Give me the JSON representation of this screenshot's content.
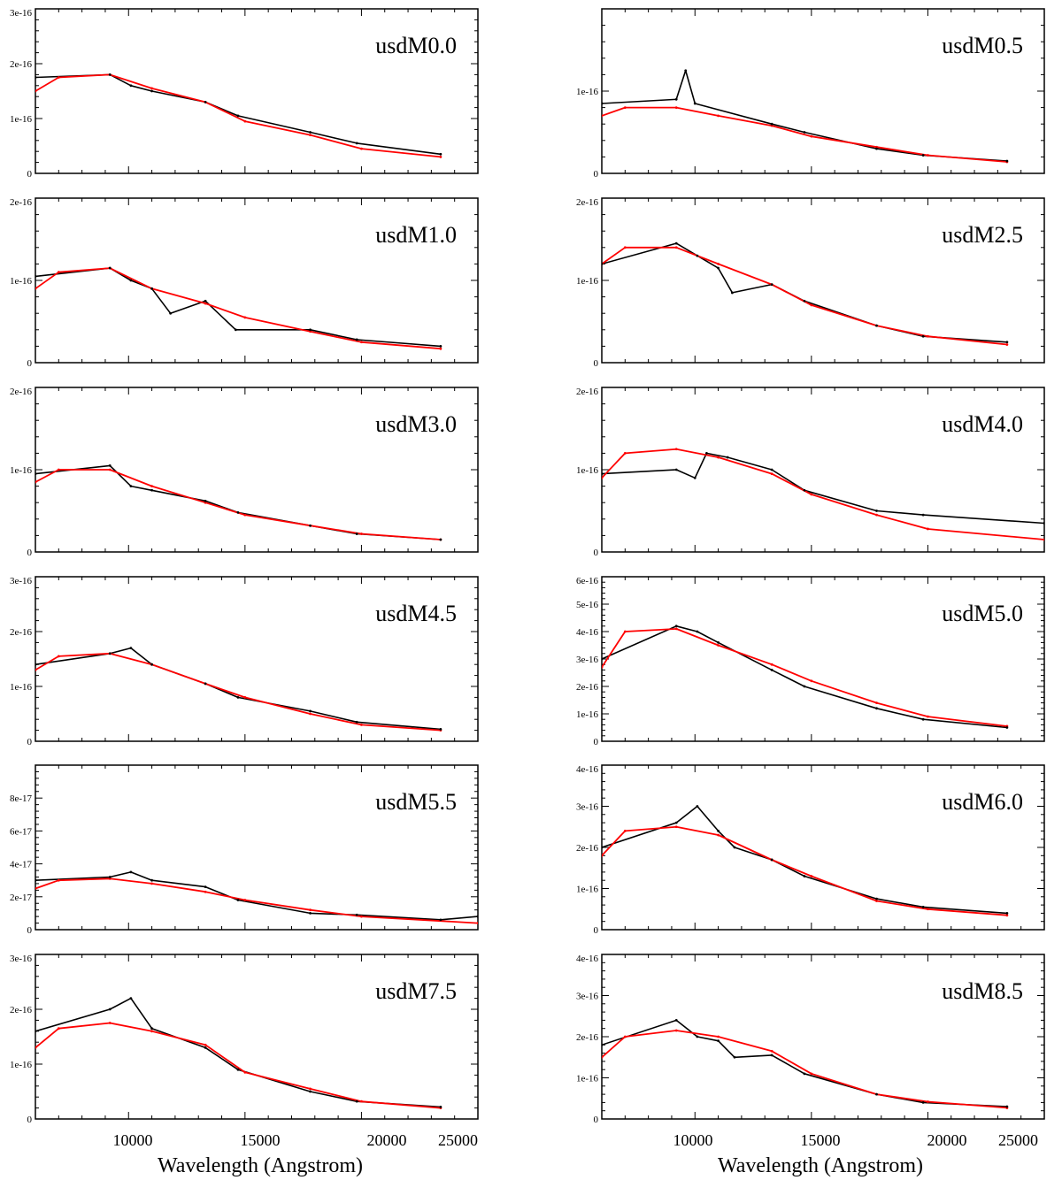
{
  "chart_data": {
    "type": "line",
    "x_ticks": [
      10000,
      15000,
      20000,
      25000
    ],
    "x_tick_labels": [
      "10000",
      "15000",
      "20000",
      "25000"
    ],
    "xlim": [
      6000,
      25000
    ],
    "xlabel": "Wavelength (Angstrom)",
    "ylabel": "",
    "grid": false,
    "series_colors": {
      "observed": "#000000",
      "model": "#ff0000"
    },
    "panels": [
      {
        "label": "usdM0.0",
        "ylim": [
          0,
          3e-16
        ],
        "ytick_values": [
          0,
          1e-16,
          2e-16,
          3e-16
        ],
        "ytick_labels": [
          "0",
          "1e-16",
          "2e-16",
          "3e-16"
        ],
        "observed": {
          "x": [
            6000,
            9200,
            10100,
            11000,
            13300,
            14700,
            17800,
            19800,
            23400
          ],
          "y": [
            1.75e-16,
            1.8e-16,
            1.6e-16,
            1.5e-16,
            1.3e-16,
            1.05e-16,
            7.5e-17,
            5.5e-17,
            3.5e-17
          ]
        },
        "model": {
          "x": [
            6000,
            7000,
            9200,
            11000,
            13300,
            15000,
            17800,
            20000,
            23400
          ],
          "y": [
            1.5e-16,
            1.75e-16,
            1.8e-16,
            1.55e-16,
            1.3e-16,
            9.5e-17,
            7e-17,
            4.5e-17,
            3e-17
          ]
        }
      },
      {
        "label": "usdM0.5",
        "ylim": [
          0,
          2e-16
        ],
        "ytick_values": [
          0,
          1e-16
        ],
        "ytick_labels": [
          "0",
          "1e-16"
        ],
        "observed": {
          "x": [
            6000,
            9200,
            9600,
            10000,
            13300,
            14700,
            17800,
            19800,
            23400
          ],
          "y": [
            8.5e-17,
            9e-17,
            1.25e-16,
            8.5e-17,
            6e-17,
            5e-17,
            3e-17,
            2.2e-17,
            1.5e-17
          ]
        },
        "model": {
          "x": [
            6000,
            7000,
            9200,
            11000,
            13300,
            15000,
            17800,
            20000,
            23400
          ],
          "y": [
            7e-17,
            8e-17,
            8e-17,
            7e-17,
            5.8e-17,
            4.5e-17,
            3.2e-17,
            2.2e-17,
            1.4e-17
          ]
        }
      },
      {
        "label": "usdM1.0",
        "ylim": [
          0,
          2e-16
        ],
        "ytick_values": [
          0,
          1e-16,
          2e-16
        ],
        "ytick_labels": [
          "0",
          "1e-16",
          "2e-16"
        ],
        "observed": {
          "x": [
            6000,
            9200,
            10100,
            11000,
            11800,
            13300,
            14600,
            17800,
            19800,
            23400
          ],
          "y": [
            1.05e-16,
            1.15e-16,
            1e-16,
            9e-17,
            6e-17,
            7.5e-17,
            4e-17,
            4e-17,
            2.8e-17,
            2e-17
          ]
        },
        "model": {
          "x": [
            6000,
            7000,
            9200,
            11000,
            13300,
            15000,
            17800,
            20000,
            23400
          ],
          "y": [
            9e-17,
            1.1e-16,
            1.15e-16,
            9e-17,
            7.2e-17,
            5.5e-17,
            3.8e-17,
            2.5e-17,
            1.7e-17
          ]
        }
      },
      {
        "label": "usdM2.5",
        "ylim": [
          0,
          2e-16
        ],
        "ytick_values": [
          0,
          1e-16,
          2e-16
        ],
        "ytick_labels": [
          "0",
          "1e-16",
          "2e-16"
        ],
        "observed": {
          "x": [
            6000,
            9200,
            10100,
            11000,
            11600,
            13300,
            14700,
            17800,
            19800,
            23400
          ],
          "y": [
            1.2e-16,
            1.45e-16,
            1.3e-16,
            1.15e-16,
            8.5e-17,
            9.5e-17,
            7.5e-17,
            4.5e-17,
            3.2e-17,
            2.5e-17
          ]
        },
        "model": {
          "x": [
            6000,
            7000,
            9200,
            11000,
            13300,
            15000,
            17800,
            20000,
            23400
          ],
          "y": [
            1.2e-16,
            1.4e-16,
            1.4e-16,
            1.2e-16,
            9.5e-17,
            7e-17,
            4.5e-17,
            3.2e-17,
            2.2e-17
          ]
        }
      },
      {
        "label": "usdM3.0",
        "ylim": [
          0,
          2e-16
        ],
        "ytick_values": [
          0,
          1e-16,
          2e-16
        ],
        "ytick_labels": [
          "0",
          "1e-16",
          "2e-16"
        ],
        "observed": {
          "x": [
            6000,
            9200,
            10100,
            11000,
            13300,
            14700,
            17800,
            19800,
            23400
          ],
          "y": [
            9.5e-17,
            1.05e-16,
            8e-17,
            7.5e-17,
            6.2e-17,
            4.8e-17,
            3.2e-17,
            2.2e-17,
            1.5e-17
          ]
        },
        "model": {
          "x": [
            6000,
            7000,
            9200,
            11000,
            13300,
            15000,
            17800,
            20000,
            23400
          ],
          "y": [
            8.5e-17,
            1e-16,
            1e-16,
            8e-17,
            6e-17,
            4.5e-17,
            3.2e-17,
            2.2e-17,
            1.5e-17
          ]
        }
      },
      {
        "label": "usdM4.0",
        "ylim": [
          0,
          2e-16
        ],
        "ytick_values": [
          0,
          1e-16,
          2e-16
        ],
        "ytick_labels": [
          "0",
          "1e-16",
          "2e-16"
        ],
        "observed": {
          "x": [
            6000,
            9200,
            10000,
            10500,
            11400,
            13300,
            14700,
            17800,
            19800,
            25000
          ],
          "y": [
            9.5e-17,
            1e-16,
            9e-17,
            1.2e-16,
            1.15e-16,
            1e-16,
            7.5e-17,
            5e-17,
            4.5e-17,
            3.5e-17
          ]
        },
        "model": {
          "x": [
            6000,
            7000,
            9200,
            11000,
            13300,
            15000,
            17800,
            20000,
            25000
          ],
          "y": [
            9e-17,
            1.2e-16,
            1.25e-16,
            1.15e-16,
            9.5e-17,
            7e-17,
            4.5e-17,
            2.8e-17,
            1.5e-17
          ]
        }
      },
      {
        "label": "usdM4.5",
        "ylim": [
          0,
          3e-16
        ],
        "ytick_values": [
          0,
          1e-16,
          2e-16,
          3e-16
        ],
        "ytick_labels": [
          "0",
          "1e-16",
          "2e-16",
          "3e-16"
        ],
        "observed": {
          "x": [
            6000,
            9200,
            10100,
            11000,
            13300,
            14700,
            17800,
            19800,
            23400
          ],
          "y": [
            1.4e-16,
            1.6e-16,
            1.7e-16,
            1.4e-16,
            1.05e-16,
            8e-17,
            5.5e-17,
            3.5e-17,
            2.2e-17
          ]
        },
        "model": {
          "x": [
            6000,
            7000,
            9200,
            11000,
            13300,
            15000,
            17800,
            20000,
            23400
          ],
          "y": [
            1.3e-16,
            1.55e-16,
            1.6e-16,
            1.4e-16,
            1.05e-16,
            8e-17,
            5e-17,
            3e-17,
            2e-17
          ]
        }
      },
      {
        "label": "usdM5.0",
        "ylim": [
          0,
          6e-16
        ],
        "ytick_values": [
          0,
          1e-16,
          2e-16,
          3e-16,
          4e-16,
          5e-16,
          6e-16
        ],
        "ytick_labels": [
          "0",
          "1e-16",
          "2e-16",
          "3e-16",
          "4e-16",
          "5e-16",
          "6e-16"
        ],
        "observed": {
          "x": [
            6000,
            9200,
            10100,
            11000,
            13300,
            14700,
            17800,
            19800,
            23400
          ],
          "y": [
            3e-16,
            4.2e-16,
            4e-16,
            3.6e-16,
            2.6e-16,
            2e-16,
            1.2e-16,
            8e-17,
            5e-17
          ]
        },
        "model": {
          "x": [
            6000,
            7000,
            9200,
            11000,
            13300,
            15000,
            17800,
            20000,
            23400
          ],
          "y": [
            2.7e-16,
            4e-16,
            4.1e-16,
            3.5e-16,
            2.8e-16,
            2.2e-16,
            1.4e-16,
            9e-17,
            5.5e-17
          ]
        }
      },
      {
        "label": "usdM5.5",
        "ylim": [
          0,
          1e-16
        ],
        "ytick_values": [
          0,
          2e-17,
          4e-17,
          6e-17,
          8e-17
        ],
        "ytick_labels": [
          "0",
          "2e-17",
          "4e-17",
          "6e-17",
          "8e-17"
        ],
        "observed": {
          "x": [
            6000,
            9200,
            10100,
            11000,
            13300,
            14700,
            17800,
            19800,
            23400,
            25000
          ],
          "y": [
            3e-17,
            3.2e-17,
            3.5e-17,
            3e-17,
            2.6e-17,
            1.8e-17,
            1e-17,
            9e-18,
            6e-18,
            8e-18
          ]
        },
        "model": {
          "x": [
            6000,
            7000,
            9200,
            11000,
            13300,
            15000,
            17800,
            20000,
            25000
          ],
          "y": [
            2.5e-17,
            3e-17,
            3.1e-17,
            2.8e-17,
            2.3e-17,
            1.8e-17,
            1.2e-17,
            8e-18,
            4e-18
          ]
        }
      },
      {
        "label": "usdM6.0",
        "ylim": [
          0,
          4e-16
        ],
        "ytick_values": [
          0,
          1e-16,
          2e-16,
          3e-16,
          4e-16
        ],
        "ytick_labels": [
          "0",
          "1e-16",
          "2e-16",
          "3e-16",
          "4e-16"
        ],
        "observed": {
          "x": [
            6000,
            9200,
            10100,
            11000,
            11700,
            13300,
            14700,
            17800,
            19800,
            23400
          ],
          "y": [
            2e-16,
            2.6e-16,
            3e-16,
            2.4e-16,
            2e-16,
            1.7e-16,
            1.3e-16,
            7.5e-17,
            5.5e-17,
            4e-17
          ]
        },
        "model": {
          "x": [
            6000,
            7000,
            9200,
            11000,
            13300,
            15000,
            17800,
            20000,
            23400
          ],
          "y": [
            1.8e-16,
            2.4e-16,
            2.5e-16,
            2.3e-16,
            1.7e-16,
            1.3e-16,
            7e-17,
            5e-17,
            3.5e-17
          ]
        }
      },
      {
        "label": "usdM7.5",
        "ylim": [
          0,
          3e-16
        ],
        "ytick_values": [
          0,
          1e-16,
          2e-16,
          3e-16
        ],
        "ytick_labels": [
          "0",
          "1e-16",
          "2e-16",
          "3e-16"
        ],
        "observed": {
          "x": [
            6000,
            9200,
            10100,
            11000,
            13300,
            14700,
            17800,
            19800,
            23400
          ],
          "y": [
            1.6e-16,
            2e-16,
            2.2e-16,
            1.65e-16,
            1.3e-16,
            9e-17,
            5e-17,
            3.2e-17,
            2.2e-17
          ]
        },
        "model": {
          "x": [
            6000,
            7000,
            9200,
            11000,
            13300,
            15000,
            17800,
            20000,
            23400
          ],
          "y": [
            1.3e-16,
            1.65e-16,
            1.75e-16,
            1.6e-16,
            1.35e-16,
            8.5e-17,
            5.5e-17,
            3.2e-17,
            2e-17
          ]
        }
      },
      {
        "label": "usdM8.5",
        "ylim": [
          0,
          4e-16
        ],
        "ytick_values": [
          0,
          1e-16,
          2e-16,
          3e-16,
          4e-16
        ],
        "ytick_labels": [
          "0",
          "1e-16",
          "2e-16",
          "3e-16",
          "4e-16"
        ],
        "observed": {
          "x": [
            6000,
            9200,
            10100,
            11000,
            11700,
            13300,
            14700,
            17800,
            19800,
            23400
          ],
          "y": [
            1.8e-16,
            2.4e-16,
            2e-16,
            1.9e-16,
            1.5e-16,
            1.55e-16,
            1.1e-16,
            6e-17,
            4e-17,
            3e-17
          ]
        },
        "model": {
          "x": [
            6000,
            7000,
            9200,
            11000,
            13300,
            15000,
            17800,
            20000,
            23400
          ],
          "y": [
            1.5e-16,
            2e-16,
            2.15e-16,
            2e-16,
            1.65e-16,
            1.1e-16,
            6e-17,
            4.2e-17,
            2.7e-17
          ]
        }
      }
    ]
  }
}
